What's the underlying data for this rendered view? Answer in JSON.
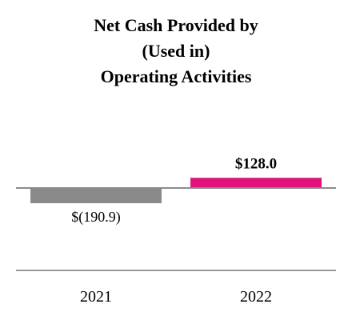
{
  "chart_data": {
    "type": "bar",
    "title_lines": [
      "Net Cash Provided by",
      "(Used in)",
      "Operating Activities"
    ],
    "categories": [
      "2021",
      "2022"
    ],
    "values": [
      -190.9,
      128.0
    ],
    "value_labels": [
      "$(190.9)",
      "$128.0"
    ],
    "colors": [
      "#8a8a8a",
      "#e0127b"
    ],
    "zero_line_color": "#8c8c8c",
    "baseline_color": "#9a9a9a",
    "ylim": [
      -200,
      200
    ]
  }
}
